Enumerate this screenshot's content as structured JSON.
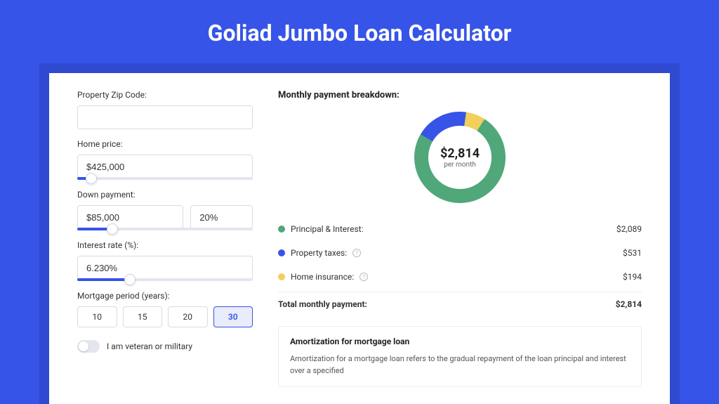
{
  "page_title": "Goliad Jumbo Loan Calculator",
  "colors": {
    "page_bg": "#3754e8",
    "panel_bg": "#2f49d1",
    "card_bg": "#ffffff",
    "accent": "#3754e8",
    "pi_color": "#4fa77a",
    "tax_color": "#3754e8",
    "ins_color": "#f2cf5b"
  },
  "form": {
    "zip_label": "Property Zip Code:",
    "zip_value": "",
    "home_price_label": "Home price:",
    "home_price_value": "$425,000",
    "home_price_slider_pct": 8,
    "down_label": "Down payment:",
    "down_value": "$85,000",
    "down_pct_value": "20%",
    "down_slider_pct": 20,
    "rate_label": "Interest rate (%):",
    "rate_value": "6.230%",
    "rate_slider_pct": 30,
    "period_label": "Mortgage period (years):",
    "periods": [
      "10",
      "15",
      "20",
      "30"
    ],
    "period_selected": "30",
    "veteran_label": "I am veteran or military"
  },
  "breakdown": {
    "title": "Monthly payment breakdown:",
    "donut": {
      "amount": "$2,814",
      "sub": "per month",
      "segments": [
        {
          "label": "Principal & Interest",
          "value_str": "$2,089",
          "value_num": 2089,
          "color": "#4fa77a",
          "has_info": false
        },
        {
          "label": "Property taxes:",
          "value_str": "$531",
          "value_num": 531,
          "color": "#3754e8",
          "has_info": true
        },
        {
          "label": "Home insurance:",
          "value_str": "$194",
          "value_num": 194,
          "color": "#f2cf5b",
          "has_info": true
        }
      ],
      "total_label": "Total monthly payment:",
      "total_value": "$2,814",
      "total_num": 2814,
      "stroke_width": 20
    }
  },
  "amort": {
    "title": "Amortization for mortgage loan",
    "text": "Amortization for a mortgage loan refers to the gradual repayment of the loan principal and interest over a specified"
  }
}
